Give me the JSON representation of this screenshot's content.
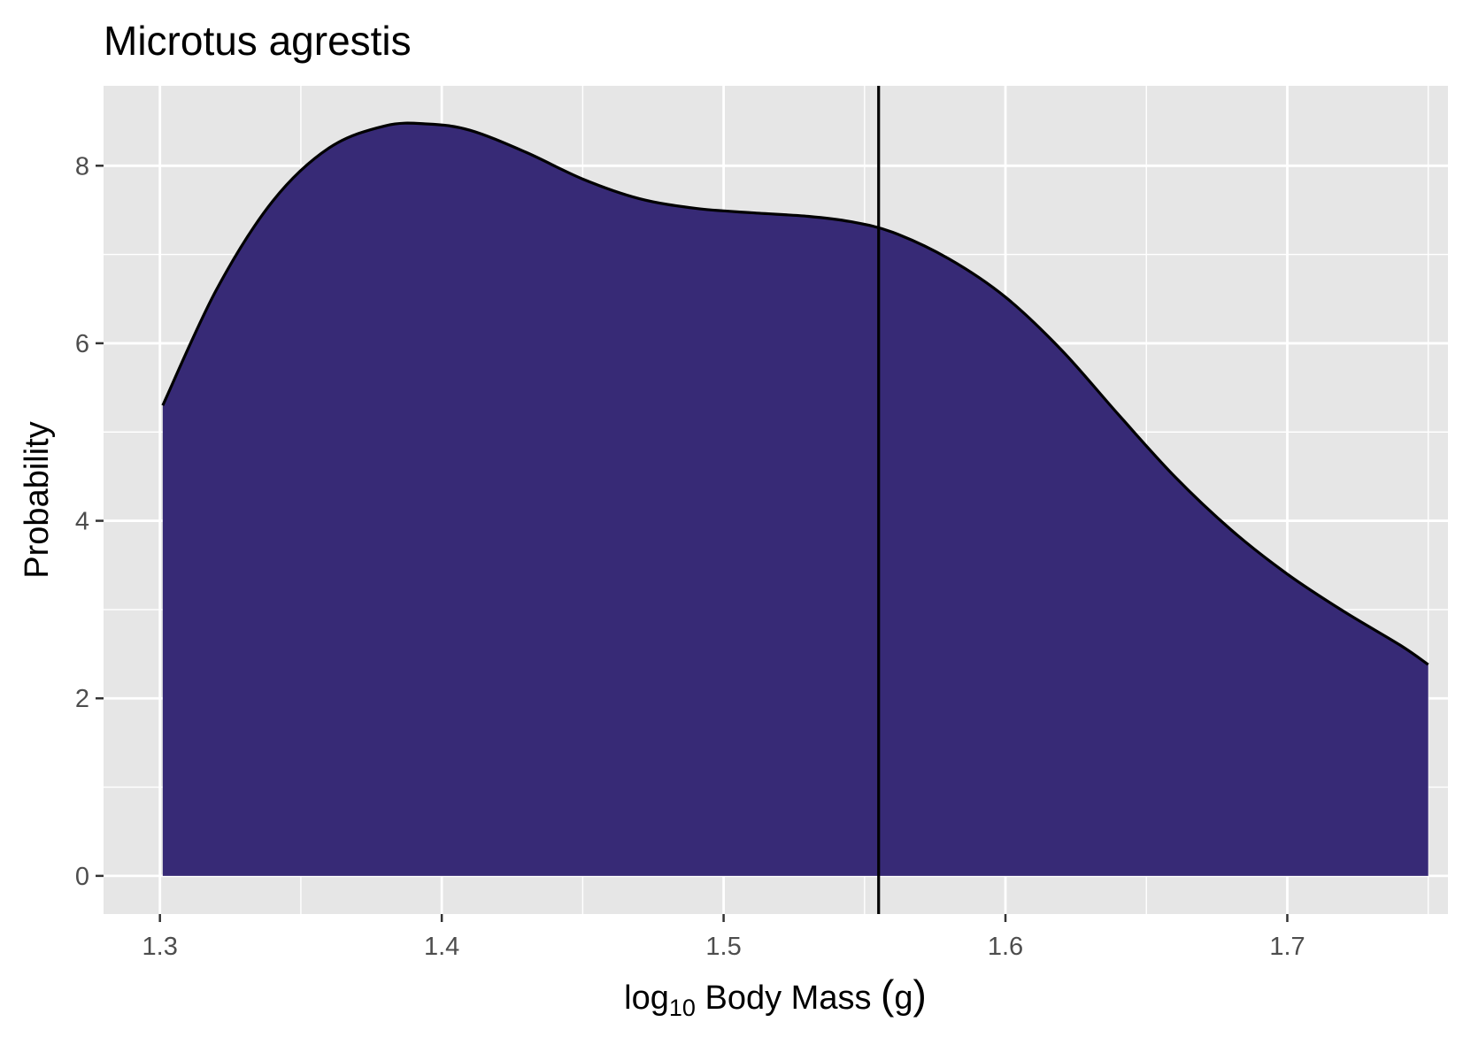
{
  "chart_data": {
    "type": "area",
    "title": "Microtus agrestis",
    "xlabel": {
      "prefix": "log",
      "subscript": "10",
      "suffix": " Body Mass ",
      "open_paren": "(",
      "unit": "g",
      "close_paren": ")"
    },
    "ylabel": "Probability",
    "xlim": [
      1.28,
      1.757
    ],
    "ylim": [
      -0.43,
      8.9
    ],
    "x_ticks": [
      1.3,
      1.4,
      1.5,
      1.6,
      1.7
    ],
    "x_tick_labels": [
      "1.3",
      "1.4",
      "1.5",
      "1.6",
      "1.7"
    ],
    "y_ticks": [
      0,
      2,
      4,
      6,
      8
    ],
    "y_tick_labels": [
      "0",
      "2",
      "4",
      "6",
      "8"
    ],
    "grid": true,
    "legend": "none",
    "fill_color": "#372a76",
    "line_color": "#000000",
    "panel_background": "#e6e6e6",
    "grid_color": "#ffffff",
    "vertical_line_x": 1.555,
    "series": [
      {
        "x": [
          1.301,
          1.32,
          1.34,
          1.36,
          1.38,
          1.395,
          1.41,
          1.43,
          1.45,
          1.47,
          1.49,
          1.51,
          1.53,
          1.545,
          1.56,
          1.58,
          1.6,
          1.62,
          1.64,
          1.66,
          1.68,
          1.7,
          1.72,
          1.74,
          1.75
        ],
        "y": [
          5.3,
          6.6,
          7.6,
          8.2,
          8.45,
          8.47,
          8.4,
          8.15,
          7.85,
          7.63,
          7.52,
          7.47,
          7.43,
          7.37,
          7.25,
          6.95,
          6.52,
          5.92,
          5.2,
          4.5,
          3.9,
          3.4,
          2.98,
          2.6,
          2.38
        ]
      }
    ]
  }
}
